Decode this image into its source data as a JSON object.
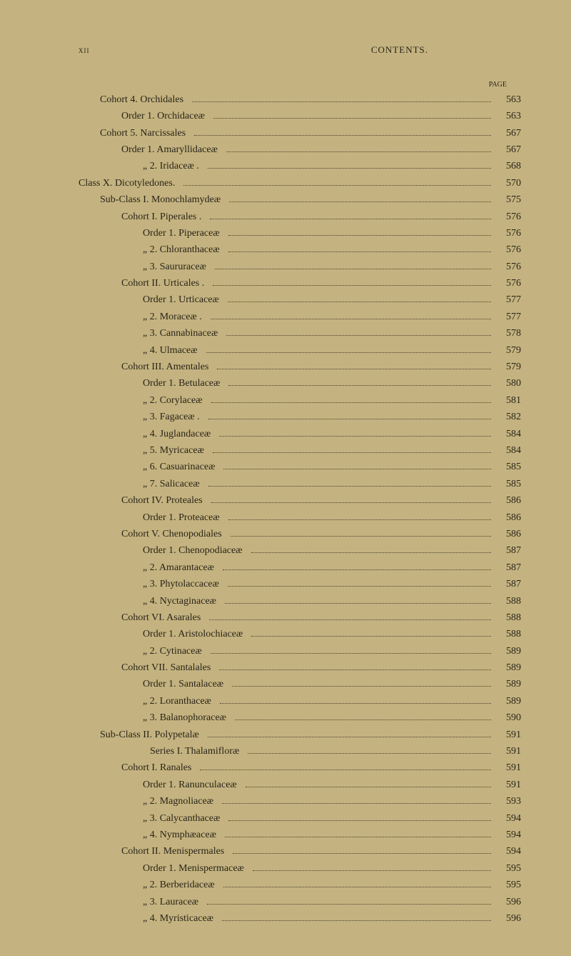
{
  "header": {
    "pageNum": "xii",
    "title": "CONTENTS.",
    "pageLabel": "PAGE"
  },
  "entries": [
    {
      "indent": 1,
      "text": "Cohort 4.  Orchidales",
      "page": "563"
    },
    {
      "indent": 2,
      "text": "Order 1.  Orchidaceæ",
      "page": "563"
    },
    {
      "indent": 1,
      "text": "Cohort 5.  Narcissales",
      "page": "567"
    },
    {
      "indent": 2,
      "text": "Order 1.  Amaryllidaceæ",
      "page": "567"
    },
    {
      "indent": 3,
      "text": "„  2.  Iridaceæ .",
      "page": "568"
    },
    {
      "indent": 0,
      "text": "Class X.  Dicotyledones.",
      "page": "570"
    },
    {
      "indent": 1,
      "text": "Sub-Class I.  Monochlamydeæ",
      "page": "575"
    },
    {
      "indent": 2,
      "text": "Cohort I.  Piperales .",
      "page": "576"
    },
    {
      "indent": 3,
      "text": "Order 1.  Piperaceæ",
      "page": "576"
    },
    {
      "indent": 3,
      "text": "„  2.  Chloranthaceæ",
      "page": "576"
    },
    {
      "indent": 3,
      "text": "„  3.  Saururaceæ",
      "page": "576"
    },
    {
      "indent": 2,
      "text": "Cohort II.  Urticales .",
      "page": "576"
    },
    {
      "indent": 3,
      "text": "Order 1.  Urticaceæ",
      "page": "577"
    },
    {
      "indent": 3,
      "text": "„  2.  Moraceæ .",
      "page": "577"
    },
    {
      "indent": 3,
      "text": "„  3.  Cannabinaceæ",
      "page": "578"
    },
    {
      "indent": 3,
      "text": "„  4.  Ulmaceæ",
      "page": "579"
    },
    {
      "indent": 2,
      "text": "Cohort III.  Amentales",
      "page": "579"
    },
    {
      "indent": 3,
      "text": "Order 1.  Betulaceæ",
      "page": "580"
    },
    {
      "indent": 3,
      "text": "„  2.  Corylaceæ",
      "page": "581"
    },
    {
      "indent": 3,
      "text": "„  3.  Fagaceæ .",
      "page": "582"
    },
    {
      "indent": 3,
      "text": "„  4.  Juglandaceæ",
      "page": "584"
    },
    {
      "indent": 3,
      "text": "„  5.  Myricaceæ",
      "page": "584"
    },
    {
      "indent": 3,
      "text": "„  6.  Casuarinaceæ",
      "page": "585"
    },
    {
      "indent": 3,
      "text": "„  7.  Salicaceæ",
      "page": "585"
    },
    {
      "indent": 2,
      "text": "Cohort IV.  Proteales",
      "page": "586"
    },
    {
      "indent": 3,
      "text": "Order 1.  Proteaceæ",
      "page": "586"
    },
    {
      "indent": 2,
      "text": "Cohort V.  Chenopodiales",
      "page": "586"
    },
    {
      "indent": 3,
      "text": "Order 1.  Chenopodiaceæ",
      "page": "587"
    },
    {
      "indent": 3,
      "text": "„  2.  Amarantaceæ",
      "page": "587"
    },
    {
      "indent": 3,
      "text": "„  3.  Phytolaccaceæ",
      "page": "587"
    },
    {
      "indent": 3,
      "text": "„  4.  Nyctaginaceæ",
      "page": "588"
    },
    {
      "indent": 2,
      "text": "Cohort VI.  Asarales",
      "page": "588"
    },
    {
      "indent": 3,
      "text": "Order 1.  Aristolochiaceæ",
      "page": "588"
    },
    {
      "indent": 3,
      "text": "„  2.  Cytinaceæ",
      "page": "589"
    },
    {
      "indent": 2,
      "text": "Cohort VII.  Santalales",
      "page": "589"
    },
    {
      "indent": 3,
      "text": "Order 1.  Santalaceæ",
      "page": "589"
    },
    {
      "indent": 3,
      "text": "„  2.  Loranthaceæ",
      "page": "589"
    },
    {
      "indent": 3,
      "text": "„  3.  Balanophoraceæ",
      "page": "590"
    },
    {
      "indent": 1,
      "text": "Sub-Class II.  Polypetalæ",
      "page": "591"
    },
    {
      "indent": 4,
      "text": "Series I.  Thalamifloræ",
      "page": "591"
    },
    {
      "indent": 2,
      "text": "Cohort I.  Ranales",
      "page": "591"
    },
    {
      "indent": 3,
      "text": "Order 1.  Ranunculaceæ",
      "page": "591"
    },
    {
      "indent": 3,
      "text": "„  2.  Magnoliaceæ",
      "page": "593"
    },
    {
      "indent": 3,
      "text": "„  3.  Calycanthaceæ",
      "page": "594"
    },
    {
      "indent": 3,
      "text": "„  4.  Nymphæaceæ",
      "page": "594"
    },
    {
      "indent": 2,
      "text": "Cohort II.  Menispermales",
      "page": "594"
    },
    {
      "indent": 3,
      "text": "Order 1.  Menispermaceæ",
      "page": "595"
    },
    {
      "indent": 3,
      "text": "„  2.  Berberidaceæ",
      "page": "595"
    },
    {
      "indent": 3,
      "text": "„  3.  Lauraceæ",
      "page": "596"
    },
    {
      "indent": 3,
      "text": "„  4.  Myristicaceæ",
      "page": "596"
    }
  ]
}
